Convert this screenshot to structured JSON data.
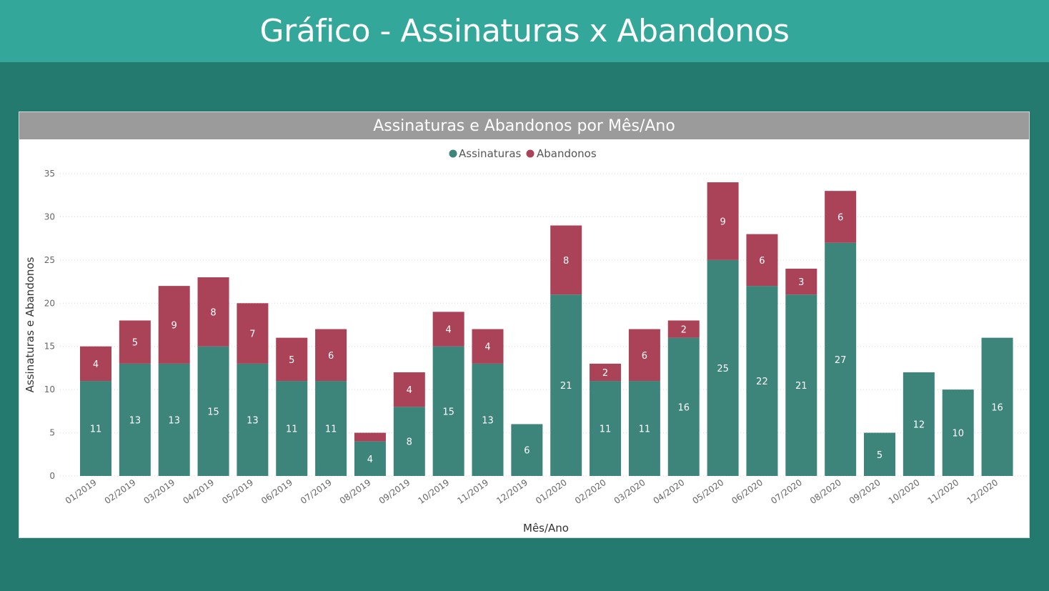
{
  "page": {
    "title": "Gráfico - Assinaturas x Abandonos"
  },
  "chart_data": {
    "type": "bar",
    "stacked": true,
    "title": "Assinaturas e Abandonos por Mês/Ano",
    "xlabel": "Mês/Ano",
    "ylabel": "Assinaturas e Abandonos",
    "ylim": [
      0,
      35
    ],
    "yticks": [
      0,
      5,
      10,
      15,
      20,
      25,
      30,
      35
    ],
    "grid": true,
    "legend": "top-center",
    "categories": [
      "01/2019",
      "02/2019",
      "03/2019",
      "04/2019",
      "05/2019",
      "06/2019",
      "07/2019",
      "08/2019",
      "09/2019",
      "10/2019",
      "11/2019",
      "12/2019",
      "01/2020",
      "02/2020",
      "03/2020",
      "04/2020",
      "05/2020",
      "06/2020",
      "07/2020",
      "08/2020",
      "09/2020",
      "10/2020",
      "11/2020",
      "12/2020"
    ],
    "series": [
      {
        "name": "Assinaturas",
        "color": "#3d857a",
        "values": [
          11,
          13,
          13,
          15,
          13,
          11,
          11,
          4,
          8,
          15,
          13,
          6,
          21,
          11,
          11,
          16,
          25,
          22,
          21,
          27,
          5,
          12,
          10,
          16
        ]
      },
      {
        "name": "Abandonos",
        "color": "#aa4258",
        "values": [
          4,
          5,
          9,
          8,
          7,
          5,
          6,
          1,
          4,
          4,
          4,
          0,
          8,
          2,
          6,
          2,
          9,
          6,
          3,
          6,
          0,
          0,
          0,
          0
        ],
        "labeled": [
          true,
          true,
          true,
          true,
          true,
          true,
          true,
          false,
          true,
          true,
          true,
          false,
          true,
          true,
          true,
          true,
          true,
          true,
          true,
          true,
          false,
          false,
          false,
          false
        ]
      }
    ]
  }
}
